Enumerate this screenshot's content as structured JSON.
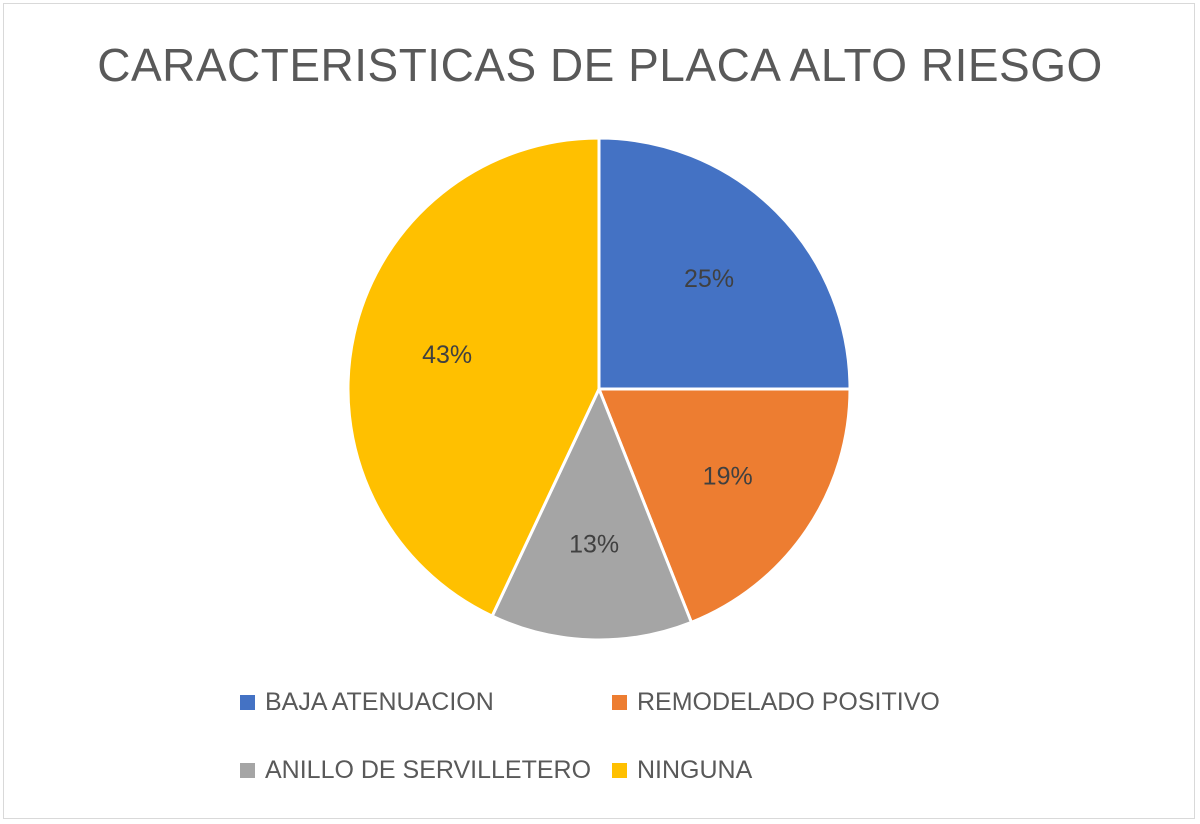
{
  "chart_data": {
    "type": "pie",
    "title": "CARACTERISTICAS DE PLACA ALTO RIESGO",
    "categories": [
      "BAJA ATENUACION",
      "REMODELADO POSITIVO",
      "ANILLO DE SERVILLETERO",
      "NINGUNA"
    ],
    "values": [
      25,
      19,
      13,
      43
    ],
    "labels": [
      "25%",
      "19%",
      "13%",
      "43%"
    ],
    "colors": [
      "#4472C4",
      "#ED7D31",
      "#A5A5A5",
      "#FFC000"
    ],
    "legend_position": "bottom",
    "start_angle": "12 o'clock",
    "direction": "clockwise"
  }
}
